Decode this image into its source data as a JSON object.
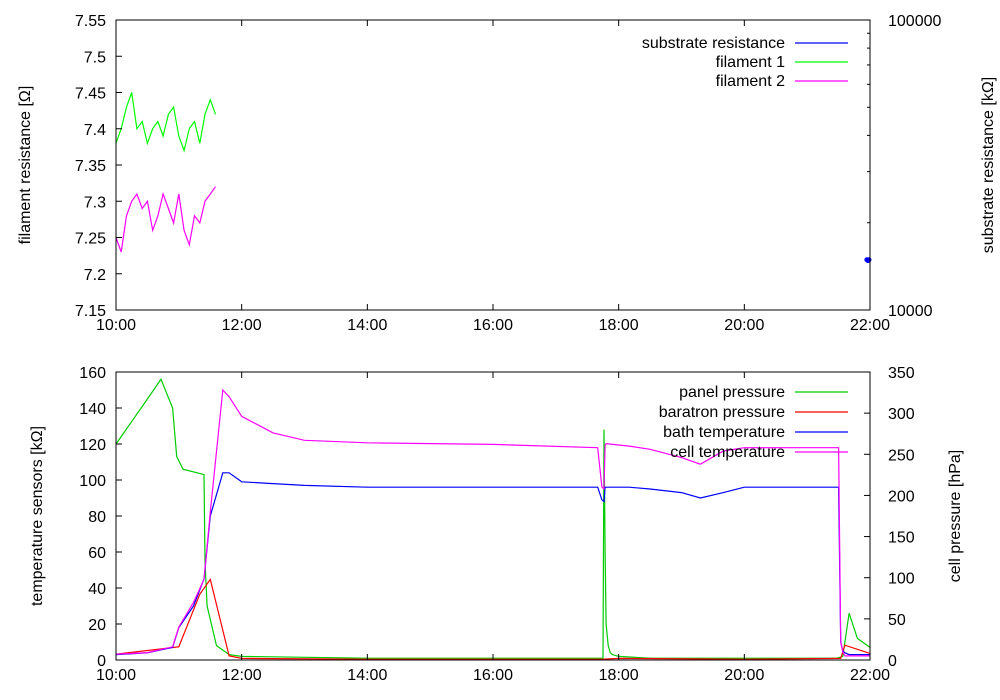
{
  "chart_data": [
    {
      "type": "line",
      "x_ticks": [
        "10:00",
        "12:00",
        "14:00",
        "16:00",
        "18:00",
        "20:00",
        "22:00"
      ],
      "xlim": [
        "10:00",
        "22:00"
      ],
      "ylabel": "filament resistance [Ω]",
      "ylim": [
        7.15,
        7.55
      ],
      "y_ticks": [
        "7.15",
        "7.2",
        "7.25",
        "7.3",
        "7.35",
        "7.4",
        "7.45",
        "7.5",
        "7.55"
      ],
      "y2label": "substrate resistance [kΩ]",
      "y2_scale": "log",
      "y2lim": [
        10000,
        100000
      ],
      "y2_ticks": [
        "10000",
        "100000"
      ],
      "grid": false,
      "legend_position": "top-right",
      "series": [
        {
          "name": "substrate resistance",
          "color": "#0000ff",
          "axis": "y2",
          "x": [
            "21:57",
            "21:58",
            "21:59"
          ],
          "y": [
            14900,
            14800,
            14900
          ]
        },
        {
          "name": "filament 1",
          "color": "#00ff00",
          "axis": "y",
          "x": [
            "10:00",
            "10:05",
            "10:10",
            "10:15",
            "10:20",
            "10:25",
            "10:30",
            "10:35",
            "10:40",
            "10:45",
            "10:50",
            "10:55",
            "11:00",
            "11:05",
            "11:10",
            "11:15",
            "11:20",
            "11:25",
            "11:30",
            "11:35"
          ],
          "y": [
            7.38,
            7.4,
            7.43,
            7.45,
            7.4,
            7.41,
            7.38,
            7.4,
            7.41,
            7.39,
            7.42,
            7.43,
            7.39,
            7.37,
            7.4,
            7.41,
            7.38,
            7.42,
            7.44,
            7.42
          ]
        },
        {
          "name": "filament 2",
          "color": "#ff00ff",
          "axis": "y",
          "x": [
            "10:00",
            "10:05",
            "10:10",
            "10:15",
            "10:20",
            "10:25",
            "10:30",
            "10:35",
            "10:40",
            "10:45",
            "10:50",
            "10:55",
            "11:00",
            "11:05",
            "11:10",
            "11:15",
            "11:20",
            "11:25",
            "11:30",
            "11:35"
          ],
          "y": [
            7.25,
            7.23,
            7.28,
            7.3,
            7.31,
            7.29,
            7.3,
            7.26,
            7.28,
            7.31,
            7.29,
            7.27,
            7.31,
            7.26,
            7.24,
            7.28,
            7.27,
            7.3,
            7.31,
            7.32
          ]
        }
      ]
    },
    {
      "type": "line",
      "x_ticks": [
        "10:00",
        "12:00",
        "14:00",
        "16:00",
        "18:00",
        "20:00",
        "22:00"
      ],
      "xlim": [
        "10:00",
        "22:00"
      ],
      "ylabel": "temperature sensors [kΩ]",
      "ylim": [
        0,
        160
      ],
      "y_ticks": [
        "0",
        "20",
        "40",
        "60",
        "80",
        "100",
        "120",
        "140",
        "160"
      ],
      "y2label": "cell pressure [hPa]",
      "y2lim": [
        0,
        350
      ],
      "y2_ticks": [
        "0",
        "50",
        "100",
        "150",
        "200",
        "250",
        "300",
        "350"
      ],
      "grid": false,
      "legend_position": "top-right",
      "series": [
        {
          "name": "panel pressure",
          "color": "#00cc00",
          "axis": "y",
          "x": [
            "10:00",
            "10:06",
            "10:30",
            "10:43",
            "10:54",
            "10:58",
            "11:04",
            "11:24",
            "11:25",
            "11:27",
            "11:36",
            "11:48",
            "12:00",
            "14:00",
            "16:00",
            "17:45",
            "17:46",
            "17:47",
            "17:48",
            "17:50",
            "17:52",
            "17:54",
            "18:00",
            "18:30",
            "20:00",
            "21:00",
            "21:28",
            "21:34",
            "21:40",
            "21:48",
            "22:00"
          ],
          "y": [
            120,
            125,
            145,
            156,
            140,
            113,
            106,
            103,
            55,
            30,
            8,
            3,
            2,
            1,
            1,
            1,
            128,
            60,
            20,
            8,
            4,
            3,
            2,
            1,
            1,
            1,
            1,
            2,
            26,
            12,
            7
          ]
        },
        {
          "name": "baratron pressure",
          "color": "#ff0000",
          "axis": "y2",
          "x": [
            "10:00",
            "11:00",
            "11:20",
            "11:30",
            "11:48",
            "12:00",
            "14:00",
            "16:00",
            "17:45",
            "18:00",
            "20:00",
            "21:32",
            "21:36",
            "22:00"
          ],
          "y": [
            7,
            16,
            80,
            98,
            5,
            2,
            1,
            1,
            1,
            2,
            1,
            2,
            18,
            8
          ]
        },
        {
          "name": "bath temperature",
          "color": "#0000ff",
          "axis": "y",
          "x": [
            "10:00",
            "10:30",
            "10:54",
            "11:00",
            "11:14",
            "11:24",
            "11:30",
            "11:42",
            "11:48",
            "12:00",
            "12:30",
            "13:00",
            "14:00",
            "16:00",
            "17:40",
            "17:44",
            "17:46",
            "17:47",
            "17:48",
            "17:52",
            "18:10",
            "18:30",
            "19:00",
            "19:18",
            "19:40",
            "20:00",
            "21:30",
            "21:32",
            "21:34",
            "21:36",
            "21:40",
            "22:00"
          ],
          "y": [
            3,
            4,
            7,
            18,
            30,
            45,
            80,
            104,
            104,
            99,
            98,
            97,
            96,
            96,
            96,
            89,
            88,
            96,
            96,
            96,
            96,
            95,
            93,
            90,
            93,
            96,
            96,
            10,
            5,
            4,
            3,
            3
          ]
        },
        {
          "name": "cell temperature",
          "color": "#ff00ff",
          "axis": "y2",
          "x": [
            "10:00",
            "10:30",
            "10:54",
            "11:00",
            "11:14",
            "11:24",
            "11:30",
            "11:42",
            "11:48",
            "12:00",
            "12:30",
            "13:00",
            "14:00",
            "16:00",
            "17:40",
            "17:44",
            "17:46",
            "17:47",
            "17:48",
            "18:10",
            "18:30",
            "19:00",
            "19:18",
            "19:40",
            "20:00",
            "21:30",
            "21:32",
            "21:34",
            "21:36",
            "22:00"
          ],
          "y": [
            7,
            9,
            16,
            40,
            70,
            98,
            180,
            328,
            320,
            296,
            276,
            267,
            264,
            262,
            258,
            210,
            208,
            261,
            263,
            260,
            256,
            246,
            238,
            254,
            258,
            258,
            22,
            10,
            5,
            5
          ]
        }
      ]
    }
  ]
}
